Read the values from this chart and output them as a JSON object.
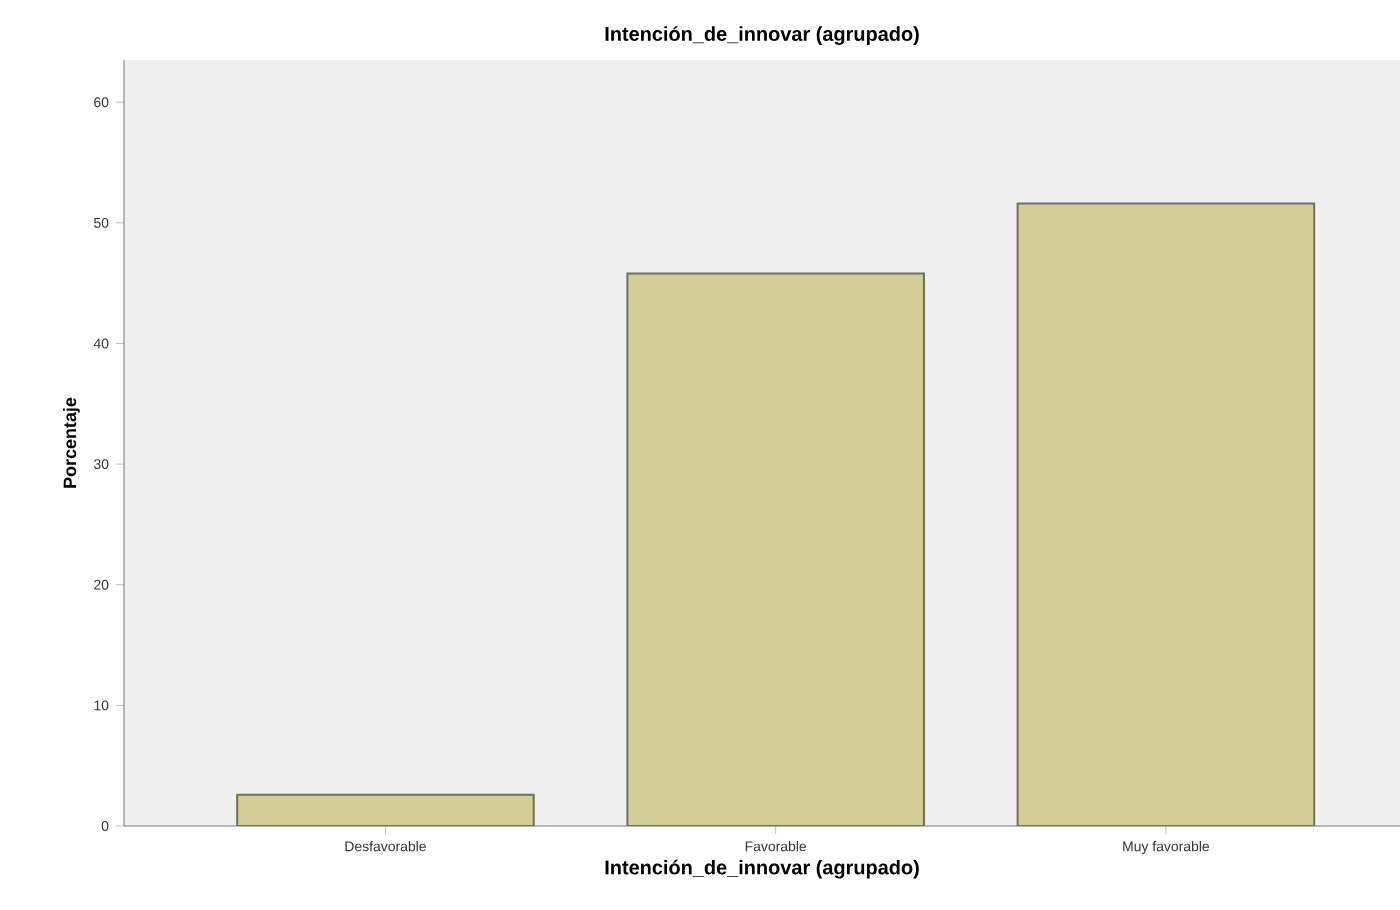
{
  "chart_data": {
    "type": "bar",
    "title": "Intención_de_innovar (agrupado)",
    "xlabel": "Intención_de_innovar (agrupado)",
    "ylabel": "Porcentaje",
    "categories": [
      "Desfavorable",
      "Favorable",
      "Muy favorable"
    ],
    "values": [
      2.6,
      45.8,
      51.6
    ],
    "color": "#d3cd96",
    "ylim": [
      0,
      63.5
    ],
    "yticks": [
      0,
      10,
      20,
      30,
      40,
      50,
      60
    ],
    "grid": false
  }
}
